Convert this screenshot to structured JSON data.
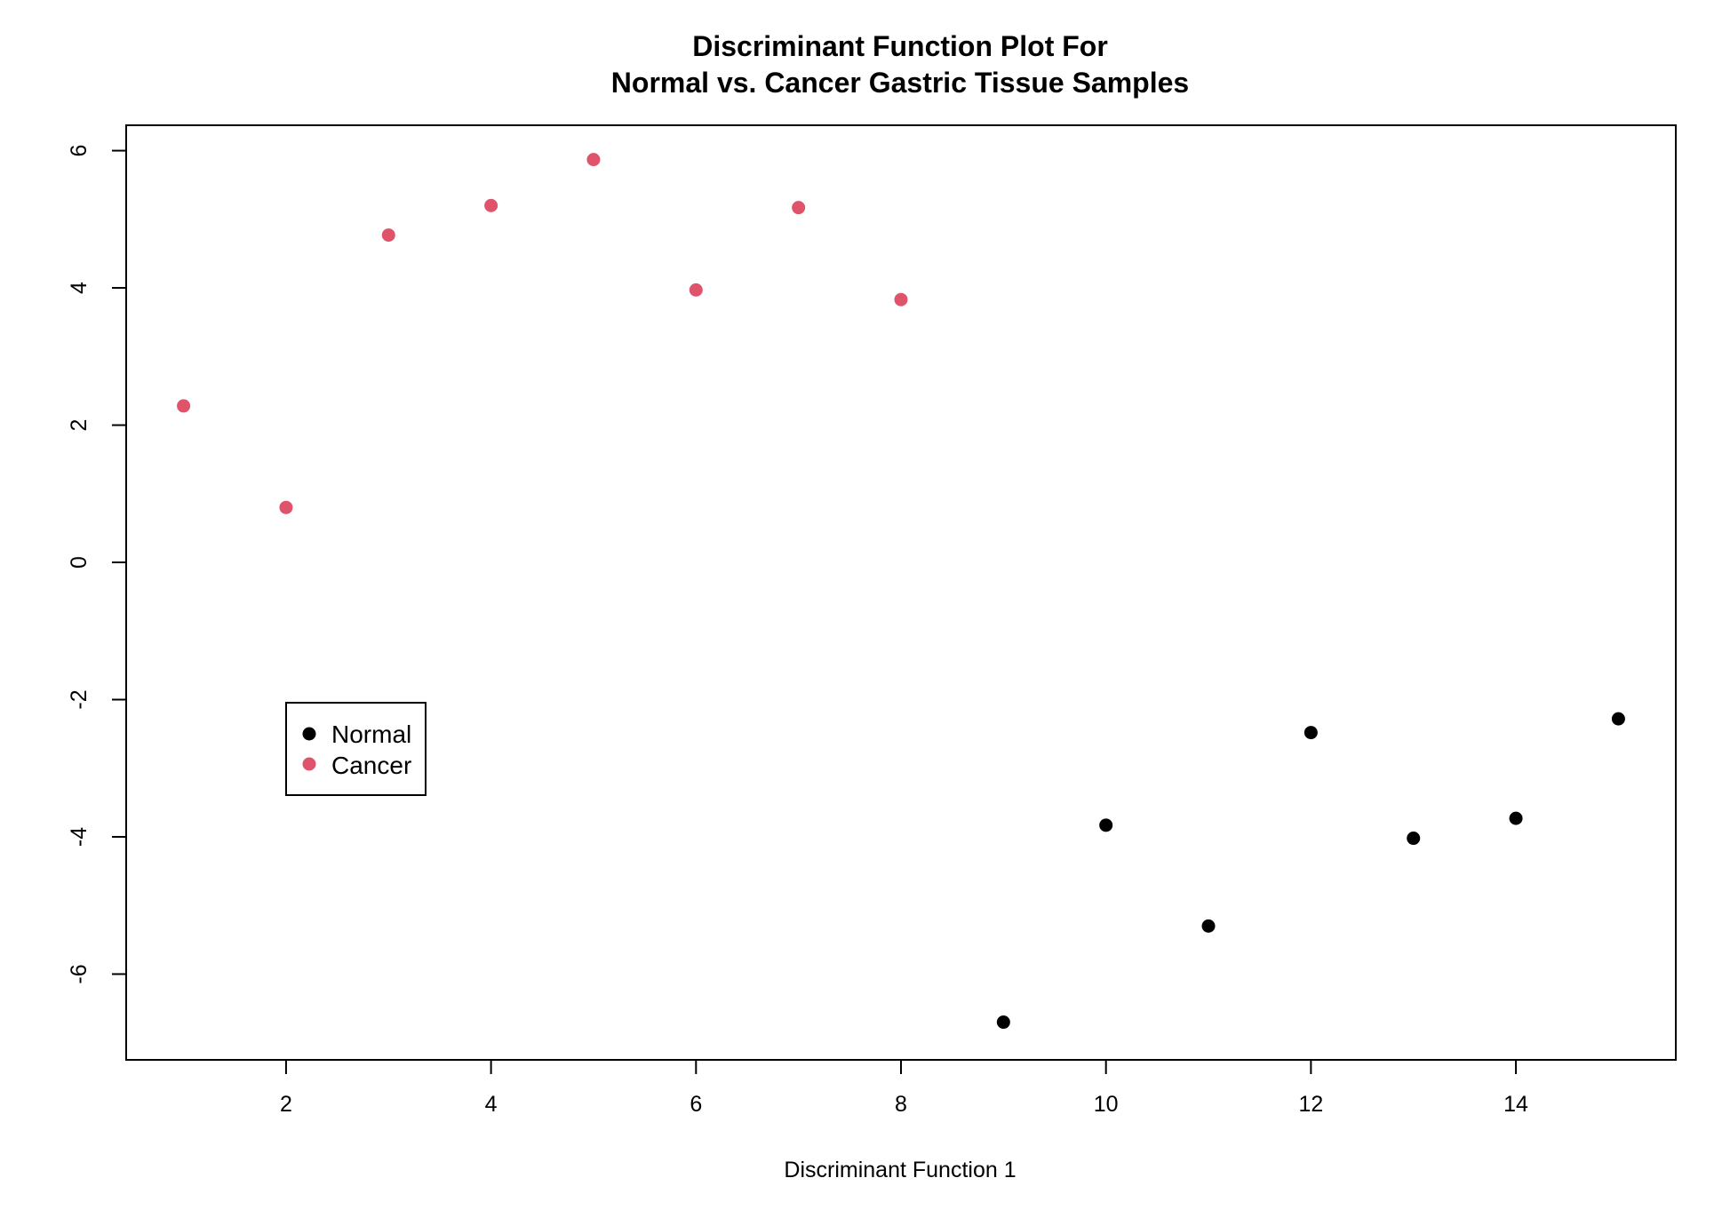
{
  "chart_data": {
    "type": "scatter",
    "title_lines": [
      "Discriminant Function Plot For",
      "Normal vs. Cancer Gastric Tissue Samples"
    ],
    "xlabel": "Discriminant Function 1",
    "ylabel": "",
    "xlim": [
      0.44,
      15.56
    ],
    "ylim": [
      -7.25,
      6.37
    ],
    "xticks": [
      2,
      4,
      6,
      8,
      10,
      12,
      14
    ],
    "yticks": [
      -6,
      -4,
      -2,
      0,
      2,
      4,
      6
    ],
    "grid": false,
    "legend_position": "left-middle",
    "series": [
      {
        "name": "Normal",
        "color": "#000000",
        "x": [
          9,
          10,
          11,
          12,
          13,
          14,
          15
        ],
        "y": [
          -6.7,
          -3.83,
          -5.3,
          -2.48,
          -4.02,
          -3.73,
          -2.28
        ]
      },
      {
        "name": "Cancer",
        "color": "#DF536B",
        "x": [
          1,
          2,
          3,
          4,
          5,
          6,
          7,
          8
        ],
        "y": [
          2.28,
          0.8,
          4.77,
          5.2,
          5.87,
          3.97,
          5.17,
          3.83
        ]
      }
    ]
  }
}
